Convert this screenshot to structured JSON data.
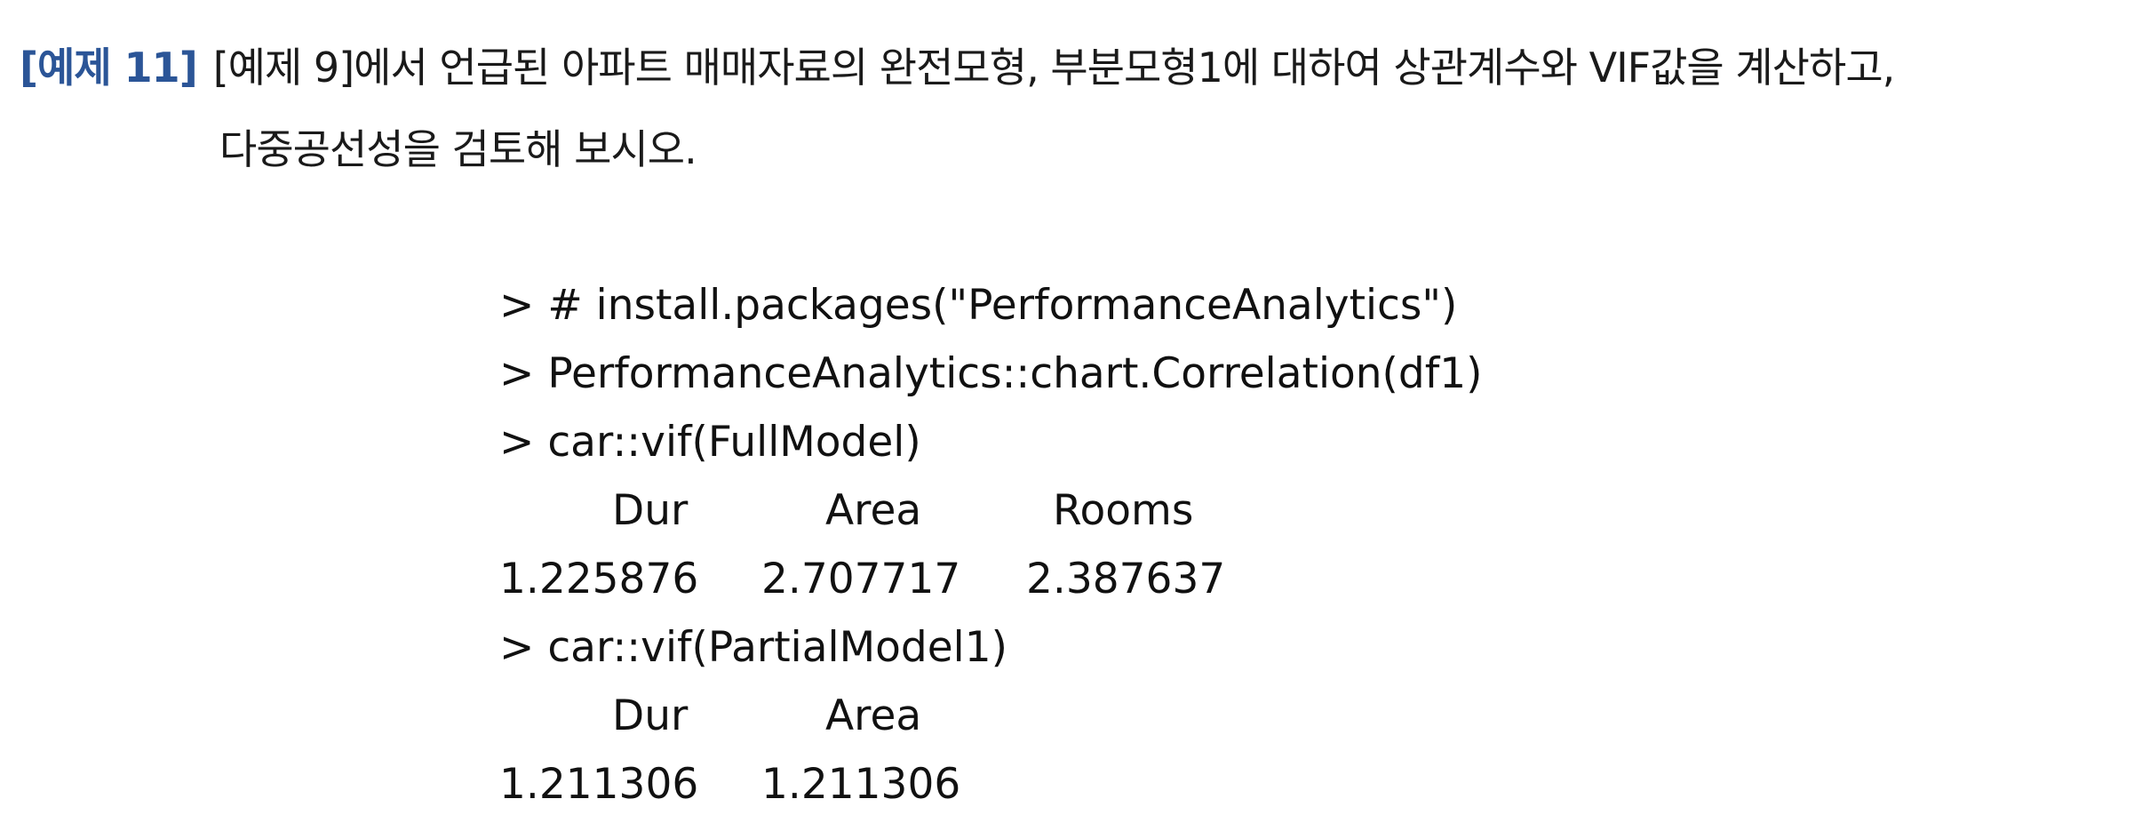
{
  "problem": {
    "label": "[예제 11]",
    "line1": "[예제 9]에서 언급된 아파트 매매자료의 완전모형, 부분모형1에 대하여 상관계수와 VIF값을 계산하고,",
    "line2": "다중공선성을 검토해 보시오."
  },
  "code": {
    "lines": [
      "> # install.packages(\"PerformanceAnalytics\")",
      "> PerformanceAnalytics::chart.Correlation(df1)",
      "> car::vif(FullModel)"
    ],
    "full_model_vif": {
      "headers": [
        "Dur",
        "Area",
        "Rooms"
      ],
      "values": [
        "1.225876",
        "2.707717",
        "2.387637"
      ]
    },
    "partial_cmd": "> car::vif(PartialModel1)",
    "partial_model_vif": {
      "headers": [
        "Dur",
        "Area"
      ],
      "values": [
        "1.211306",
        "1.211306"
      ]
    }
  }
}
